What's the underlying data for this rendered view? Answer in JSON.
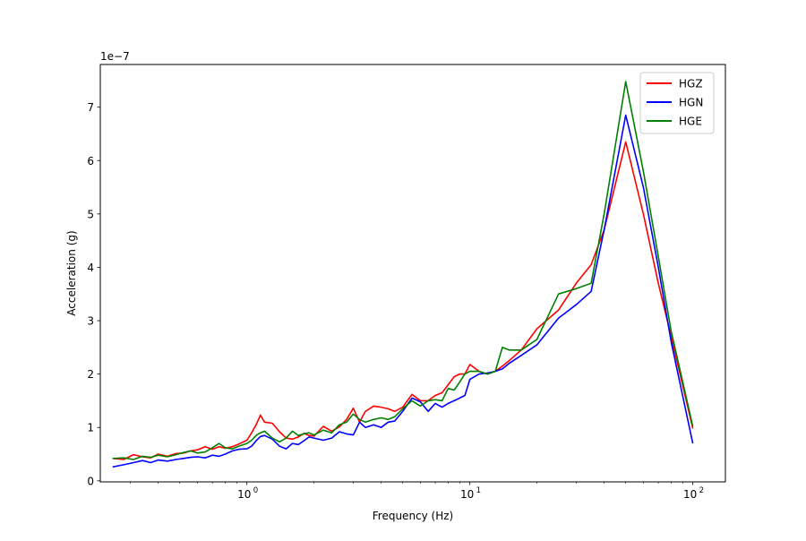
{
  "chart_data": {
    "type": "line",
    "x_scale": "log",
    "xlim": [
      0.22,
      140
    ],
    "ylim": [
      -2e-09,
      7.8e-07
    ],
    "xlabel": "Frequency (Hz)",
    "ylabel": "Acceleration (g)",
    "offset_text": "1e−7",
    "x_ticks": [
      {
        "value": 1,
        "base": "10",
        "exp": "0"
      },
      {
        "value": 10,
        "base": "10",
        "exp": "1"
      },
      {
        "value": 100,
        "base": "10",
        "exp": "2"
      }
    ],
    "y_ticks": [
      {
        "value": 0,
        "label": "0"
      },
      {
        "value": 1e-07,
        "label": "1"
      },
      {
        "value": 2e-07,
        "label": "2"
      },
      {
        "value": 3e-07,
        "label": "3"
      },
      {
        "value": 4e-07,
        "label": "4"
      },
      {
        "value": 5e-07,
        "label": "5"
      },
      {
        "value": 6e-07,
        "label": "6"
      },
      {
        "value": 7e-07,
        "label": "7"
      }
    ],
    "legend_position": "top-right",
    "grid": false,
    "series": [
      {
        "name": "HGZ",
        "color": "#ff0000",
        "x": [
          0.25,
          0.28,
          0.31,
          0.34,
          0.37,
          0.4,
          0.44,
          0.48,
          0.52,
          0.56,
          0.6,
          0.65,
          0.7,
          0.75,
          0.8,
          0.86,
          0.92,
          1.0,
          1.05,
          1.1,
          1.15,
          1.2,
          1.3,
          1.4,
          1.5,
          1.6,
          1.7,
          1.8,
          1.9,
          2.0,
          2.2,
          2.4,
          2.6,
          2.8,
          3.0,
          3.2,
          3.4,
          3.7,
          4.0,
          4.3,
          4.6,
          5.0,
          5.5,
          6.0,
          6.5,
          7.0,
          7.5,
          8.0,
          8.5,
          9.0,
          9.5,
          10,
          11,
          12,
          13,
          14,
          15,
          17,
          20,
          25,
          30,
          35,
          40,
          50,
          60,
          70,
          80,
          100
        ],
        "y": [
          4.2e-08,
          4e-08,
          4.9e-08,
          4.5e-08,
          4.3e-08,
          5e-08,
          4.6e-08,
          5.1e-08,
          5.2e-08,
          5.6e-08,
          5.8e-08,
          6.4e-08,
          5.9e-08,
          6.4e-08,
          6.1e-08,
          6.4e-08,
          6.9e-08,
          7.6e-08,
          9e-08,
          1.05e-07,
          1.23e-07,
          1.1e-07,
          1.08e-07,
          9.2e-08,
          8e-08,
          7.8e-08,
          8.2e-08,
          8.9e-08,
          8.5e-08,
          8.4e-08,
          1.02e-07,
          9.3e-08,
          1.01e-07,
          1.15e-07,
          1.36e-07,
          1.1e-07,
          1.3e-07,
          1.4e-07,
          1.38e-07,
          1.35e-07,
          1.3e-07,
          1.38e-07,
          1.62e-07,
          1.5e-07,
          1.5e-07,
          1.6e-07,
          1.65e-07,
          1.8e-07,
          1.95e-07,
          2e-07,
          2e-07,
          2.18e-07,
          2.05e-07,
          2e-07,
          2.05e-07,
          2.15e-07,
          2.25e-07,
          2.45e-07,
          2.85e-07,
          3.2e-07,
          3.7e-07,
          4.05e-07,
          4.7e-07,
          6.35e-07,
          5e-07,
          3.7e-07,
          2.7e-07,
          9.8e-08
        ]
      },
      {
        "name": "HGN",
        "color": "#0000ff",
        "x": [
          0.25,
          0.28,
          0.31,
          0.34,
          0.37,
          0.4,
          0.44,
          0.48,
          0.52,
          0.56,
          0.6,
          0.65,
          0.7,
          0.75,
          0.8,
          0.86,
          0.92,
          1.0,
          1.05,
          1.1,
          1.15,
          1.2,
          1.3,
          1.4,
          1.5,
          1.6,
          1.7,
          1.8,
          1.9,
          2.0,
          2.2,
          2.4,
          2.6,
          2.8,
          3.0,
          3.2,
          3.4,
          3.7,
          4.0,
          4.3,
          4.6,
          5.0,
          5.5,
          6.0,
          6.5,
          7.0,
          7.5,
          8.0,
          8.5,
          9.0,
          9.5,
          10,
          11,
          12,
          13,
          14,
          15,
          17,
          20,
          25,
          30,
          35,
          40,
          50,
          60,
          70,
          80,
          100
        ],
        "y": [
          2.6e-08,
          3e-08,
          3.4e-08,
          3.8e-08,
          3.4e-08,
          3.9e-08,
          3.7e-08,
          4e-08,
          4.2e-08,
          4.4e-08,
          4.5e-08,
          4.3e-08,
          4.8e-08,
          4.6e-08,
          5e-08,
          5.6e-08,
          5.9e-08,
          6e-08,
          6.5e-08,
          7.5e-08,
          8.3e-08,
          8.5e-08,
          7.8e-08,
          6.5e-08,
          6e-08,
          7e-08,
          6.8e-08,
          7.5e-08,
          8.2e-08,
          8e-08,
          7.6e-08,
          8e-08,
          9.2e-08,
          8.8e-08,
          8.6e-08,
          1.1e-07,
          1e-07,
          1.05e-07,
          1e-07,
          1.1e-07,
          1.12e-07,
          1.3e-07,
          1.55e-07,
          1.48e-07,
          1.3e-07,
          1.45e-07,
          1.38e-07,
          1.45e-07,
          1.5e-07,
          1.55e-07,
          1.6e-07,
          1.9e-07,
          2e-07,
          2.02e-07,
          2.05e-07,
          2.1e-07,
          2.2e-07,
          2.35e-07,
          2.55e-07,
          3.05e-07,
          3.3e-07,
          3.55e-07,
          4.7e-07,
          6.85e-07,
          5.5e-07,
          4e-07,
          2.6e-07,
          7e-08
        ]
      },
      {
        "name": "HGE",
        "color": "#008000",
        "x": [
          0.25,
          0.28,
          0.31,
          0.34,
          0.37,
          0.4,
          0.44,
          0.48,
          0.52,
          0.56,
          0.6,
          0.65,
          0.7,
          0.75,
          0.8,
          0.86,
          0.92,
          1.0,
          1.05,
          1.1,
          1.15,
          1.2,
          1.3,
          1.4,
          1.5,
          1.6,
          1.7,
          1.8,
          1.9,
          2.0,
          2.2,
          2.4,
          2.6,
          2.8,
          3.0,
          3.2,
          3.4,
          3.7,
          4.0,
          4.3,
          4.6,
          5.0,
          5.5,
          6.0,
          6.5,
          7.0,
          7.5,
          8.0,
          8.5,
          9.0,
          9.5,
          10,
          11,
          12,
          13,
          14,
          15,
          17,
          20,
          25,
          30,
          35,
          40,
          50,
          60,
          70,
          80,
          100
        ],
        "y": [
          4.2e-08,
          4.3e-08,
          4e-08,
          4.6e-08,
          4.4e-08,
          4.8e-08,
          4.5e-08,
          4.9e-08,
          5.3e-08,
          5.6e-08,
          5.2e-08,
          5.4e-08,
          6.2e-08,
          7e-08,
          6.2e-08,
          6e-08,
          6.5e-08,
          7e-08,
          7.6e-08,
          8.5e-08,
          9e-08,
          9.3e-08,
          8e-08,
          7.3e-08,
          8e-08,
          9.3e-08,
          8.5e-08,
          8.8e-08,
          9e-08,
          8.6e-08,
          9.5e-08,
          9e-08,
          1.05e-07,
          1.1e-07,
          1.25e-07,
          1.15e-07,
          1.1e-07,
          1.15e-07,
          1.18e-07,
          1.15e-07,
          1.2e-07,
          1.35e-07,
          1.5e-07,
          1.4e-07,
          1.5e-07,
          1.52e-07,
          1.5e-07,
          1.73e-07,
          1.7e-07,
          1.85e-07,
          2e-07,
          2.05e-07,
          2.05e-07,
          2e-07,
          2.05e-07,
          2.5e-07,
          2.45e-07,
          2.45e-07,
          2.65e-07,
          3.5e-07,
          3.6e-07,
          3.7e-07,
          5e-07,
          7.48e-07,
          5.8e-07,
          4.2e-07,
          2.8e-07,
          1.02e-07
        ]
      }
    ]
  }
}
